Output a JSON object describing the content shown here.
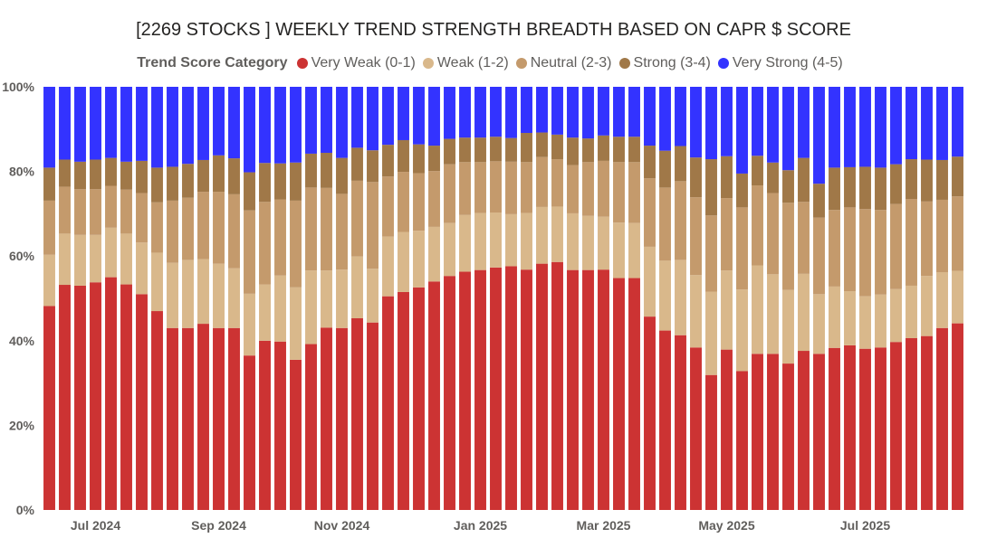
{
  "chart_data": {
    "type": "bar",
    "stacked": true,
    "title": "[2269 STOCKS ] WEEKLY TREND STRENGTH BREADTH BASED ON CAPR $ SCORE",
    "legend_title": "Trend Score Category",
    "legend_position": "top",
    "ylim": [
      0,
      100
    ],
    "yticks": [
      "0%",
      "20%",
      "40%",
      "60%",
      "80%",
      "100%"
    ],
    "xticks": [
      {
        "label": "Jul 2024",
        "index": 3
      },
      {
        "label": "Sep 2024",
        "index": 11
      },
      {
        "label": "Nov 2024",
        "index": 19
      },
      {
        "label": "Jan 2025",
        "index": 28
      },
      {
        "label": "Mar 2025",
        "index": 36
      },
      {
        "label": "May 2025",
        "index": 44
      },
      {
        "label": "Jul 2025",
        "index": 53
      }
    ],
    "series": [
      {
        "name": "Very Weak (0-1)",
        "color": "#cc3333",
        "values": [
          48.2,
          53.2,
          53.0,
          53.8,
          55.0,
          53.3,
          51.0,
          47.0,
          43.0,
          43.0,
          44.0,
          43.0,
          43.0,
          36.5,
          40.0,
          39.8,
          35.5,
          39.2,
          43.1,
          43.0,
          45.3,
          44.3,
          50.5,
          51.5,
          52.6,
          54.0,
          55.3,
          56.3,
          56.7,
          57.3,
          57.6,
          56.8,
          58.2,
          58.6,
          56.7,
          56.7,
          56.8,
          54.8,
          54.8,
          45.7,
          42.4,
          41.3,
          38.4,
          31.9,
          37.9,
          32.8,
          36.9,
          36.9,
          34.6,
          37.6,
          36.9,
          38.3,
          38.9,
          38.1,
          38.4,
          39.7,
          40.6,
          41.1,
          43.0,
          44.1
        ]
      },
      {
        "name": "Weak (1-2)",
        "color": "#d9b88b",
        "values": [
          12.1,
          12.1,
          12.0,
          11.2,
          11.7,
          12.0,
          12.2,
          13.8,
          15.4,
          16.1,
          15.3,
          15.2,
          14.1,
          14.6,
          13.3,
          15.6,
          17.1,
          17.4,
          13.5,
          13.8,
          14.6,
          12.7,
          14.1,
          14.2,
          13.4,
          12.9,
          12.5,
          13.4,
          13.5,
          13.0,
          12.3,
          13.4,
          13.4,
          13.1,
          13.4,
          12.8,
          12.5,
          13.1,
          13.0,
          16.5,
          16.5,
          17.8,
          17.1,
          19.7,
          18.7,
          19.3,
          20.9,
          18.8,
          17.4,
          18.2,
          14.1,
          14.5,
          12.8,
          12.4,
          12.5,
          12.5,
          12.4,
          14.2,
          13.2,
          12.4
        ]
      },
      {
        "name": "Neutral (2-3)",
        "color": "#c49a6c",
        "values": [
          12.8,
          11.1,
          10.8,
          10.8,
          9.9,
          10.4,
          11.7,
          11.9,
          14.7,
          14.7,
          15.9,
          17.0,
          17.5,
          19.7,
          19.5,
          18.0,
          20.5,
          19.6,
          19.5,
          17.9,
          17.9,
          20.5,
          14.2,
          14.2,
          13.6,
          13.2,
          13.9,
          12.5,
          12.0,
          12.1,
          12.4,
          12.0,
          11.8,
          11.2,
          11.4,
          12.7,
          13.2,
          14.3,
          14.4,
          16.2,
          17.3,
          18.6,
          18.4,
          18.0,
          17.1,
          19.4,
          18.9,
          19.2,
          20.6,
          17.0,
          18.1,
          18.1,
          19.8,
          20.6,
          20.0,
          20.1,
          20.5,
          17.6,
          17.1,
          17.6
        ]
      },
      {
        "name": "Strong (3-4)",
        "color": "#a07848",
        "values": [
          7.8,
          6.4,
          6.5,
          7.0,
          6.6,
          6.6,
          7.6,
          8.2,
          8.0,
          8.0,
          7.5,
          8.6,
          8.5,
          9.0,
          9.2,
          8.5,
          9.0,
          8.0,
          8.3,
          8.5,
          7.8,
          7.5,
          7.5,
          7.5,
          6.8,
          6.0,
          6.0,
          5.8,
          5.8,
          5.8,
          5.6,
          6.9,
          5.8,
          5.8,
          6.5,
          5.6,
          6.0,
          6.0,
          6.0,
          7.7,
          8.7,
          8.3,
          9.4,
          13.3,
          9.9,
          8.0,
          7.0,
          7.2,
          7.7,
          10.4,
          8.0,
          10.0,
          9.5,
          10.0,
          10.0,
          9.4,
          9.4,
          9.9,
          9.4,
          9.4
        ]
      },
      {
        "name": "Very Strong (4-5)",
        "color": "#3333ff",
        "values": [
          19.1,
          17.2,
          17.7,
          17.2,
          16.8,
          17.7,
          17.5,
          19.1,
          18.9,
          18.2,
          17.3,
          16.2,
          16.9,
          20.2,
          18.0,
          18.1,
          17.9,
          15.8,
          15.6,
          16.8,
          14.4,
          15.0,
          13.7,
          12.6,
          13.6,
          13.9,
          12.3,
          12.0,
          12.0,
          11.8,
          12.1,
          10.9,
          10.8,
          11.3,
          12.0,
          12.2,
          11.5,
          11.8,
          11.8,
          13.9,
          15.1,
          14.0,
          16.7,
          17.1,
          16.4,
          20.5,
          16.3,
          17.9,
          19.7,
          16.8,
          22.9,
          19.1,
          19.0,
          18.9,
          19.1,
          18.3,
          17.1,
          17.2,
          17.3,
          16.5
        ]
      }
    ]
  }
}
